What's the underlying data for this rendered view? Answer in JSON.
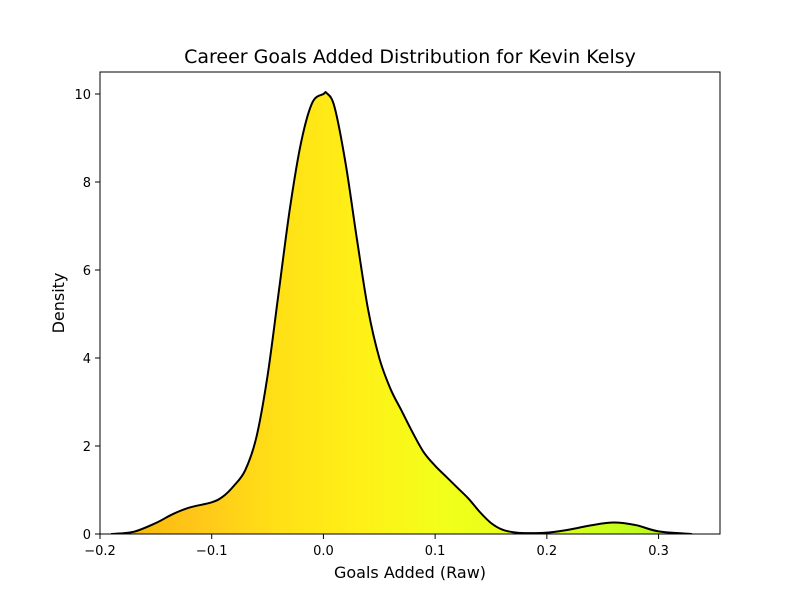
{
  "chart_data": {
    "type": "area",
    "title": "Career Goals Added Distribution for Kevin Kelsy",
    "xlabel": "Goals Added (Raw)",
    "ylabel": "Density",
    "xlim": [
      -0.2,
      0.355
    ],
    "ylim": [
      0,
      10.5
    ],
    "xticks": [
      -0.2,
      -0.1,
      0.0,
      0.1,
      0.2,
      0.3
    ],
    "xtick_labels": [
      "−0.2",
      "−0.1",
      "0.0",
      "0.1",
      "0.2",
      "0.3"
    ],
    "yticks": [
      0,
      2,
      4,
      6,
      8,
      10
    ],
    "ytick_labels": [
      "0",
      "2",
      "4",
      "6",
      "8",
      "10"
    ],
    "grid": false,
    "legend": "none",
    "series": [
      {
        "x": [
          -0.19,
          -0.17,
          -0.15,
          -0.135,
          -0.12,
          -0.1,
          -0.09,
          -0.08,
          -0.07,
          -0.06,
          -0.05,
          -0.04,
          -0.03,
          -0.02,
          -0.01,
          0.0,
          0.003,
          0.01,
          0.02,
          0.03,
          0.04,
          0.05,
          0.06,
          0.07,
          0.08,
          0.09,
          0.1,
          0.11,
          0.12,
          0.13,
          0.14,
          0.15,
          0.16,
          0.17,
          0.18,
          0.2,
          0.22,
          0.24,
          0.26,
          0.28,
          0.3,
          0.33
        ],
        "y": [
          0.0,
          0.05,
          0.25,
          0.45,
          0.6,
          0.72,
          0.85,
          1.1,
          1.45,
          2.2,
          3.6,
          5.5,
          7.4,
          8.9,
          9.8,
          10.0,
          10.02,
          9.7,
          8.4,
          6.7,
          5.1,
          4.0,
          3.3,
          2.8,
          2.3,
          1.85,
          1.55,
          1.3,
          1.05,
          0.8,
          0.5,
          0.25,
          0.1,
          0.04,
          0.02,
          0.03,
          0.1,
          0.2,
          0.26,
          0.2,
          0.06,
          0.0
        ]
      }
    ],
    "colors": {
      "fill_gradient": [
        "#f4b400",
        "#ffc61a",
        "#ffe016",
        "#fff017",
        "#f2ff1a",
        "#e4ff18",
        "#c8ff1c",
        "#aef21e"
      ],
      "line": "#000000",
      "axes": "#000000",
      "background": "#ffffff"
    }
  }
}
